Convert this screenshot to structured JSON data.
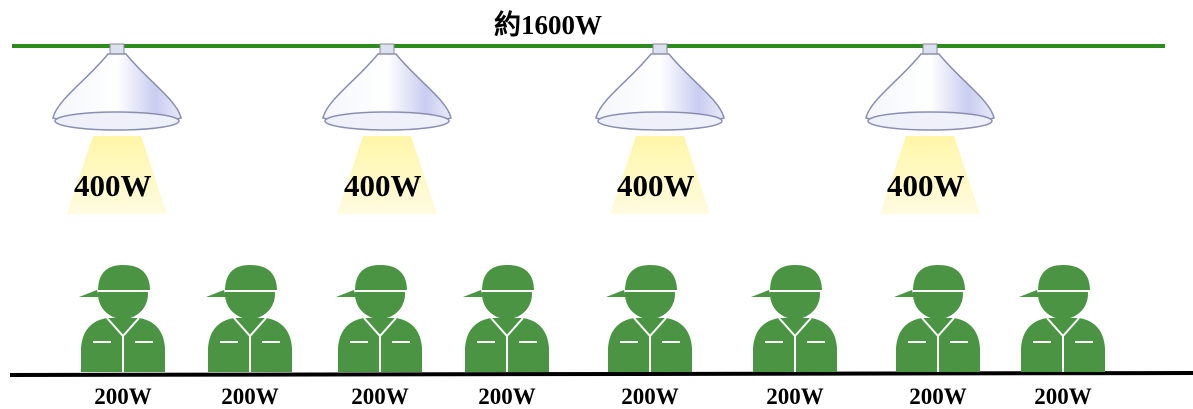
{
  "title": "約1600W",
  "lamps": [
    {
      "label": "400W"
    },
    {
      "label": "400W"
    },
    {
      "label": "400W"
    },
    {
      "label": "400W"
    }
  ],
  "workers": [
    {
      "label": "200W"
    },
    {
      "label": "200W"
    },
    {
      "label": "200W"
    },
    {
      "label": "200W"
    },
    {
      "label": "200W"
    },
    {
      "label": "200W"
    },
    {
      "label": "200W"
    },
    {
      "label": "200W"
    }
  ]
}
